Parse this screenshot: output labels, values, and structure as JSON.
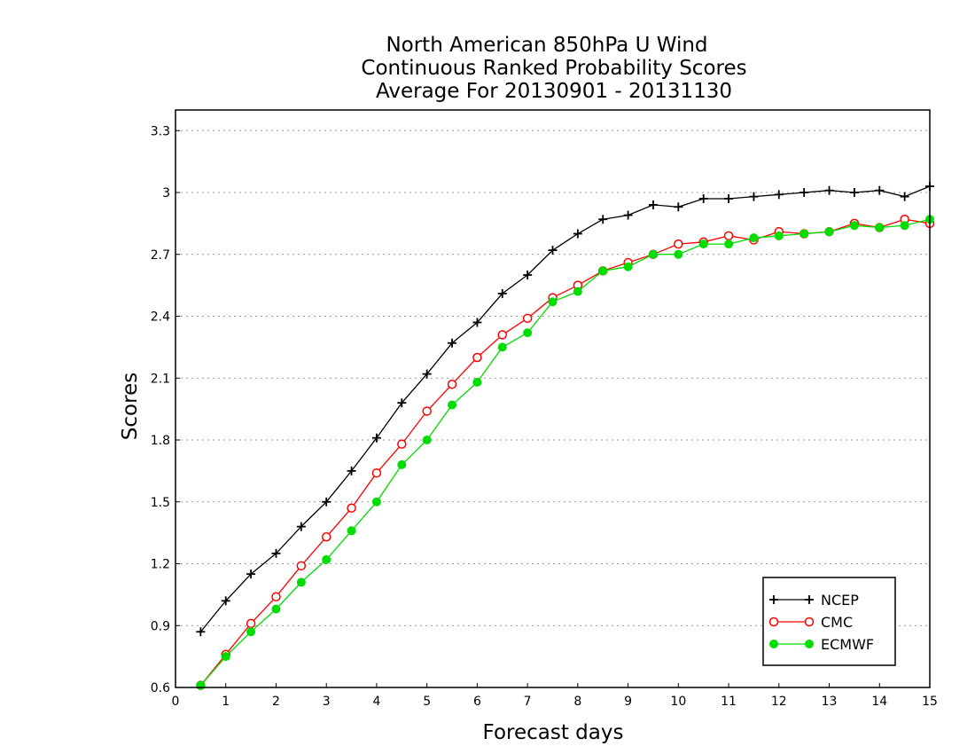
{
  "chart_data": {
    "type": "line",
    "title": [
      "North American 850hPa U Wind",
      "Continuous Ranked Probability Scores",
      "Average For 20130901 - 20131130"
    ],
    "xlabel": "Forecast days",
    "ylabel": "Scores",
    "xlim": [
      0,
      15
    ],
    "ylim": [
      0.6,
      3.4
    ],
    "xticks": [
      0,
      1,
      2,
      3,
      4,
      5,
      6,
      7,
      8,
      9,
      10,
      11,
      12,
      13,
      14,
      15
    ],
    "yticks": [
      0.6,
      0.9,
      1.2,
      1.5,
      1.8,
      2.1,
      2.4,
      2.7,
      3,
      3.3
    ],
    "ytick_labels": [
      "0.6",
      "0.9",
      "1.2",
      "1.5",
      "1.8",
      "2.1",
      "2.4",
      "2.7",
      "3",
      "3.3"
    ],
    "grid": "horizontal dotted",
    "legend_position": "bottom-right",
    "x": [
      0.5,
      1,
      1.5,
      2,
      2.5,
      3,
      3.5,
      4,
      4.5,
      5,
      5.5,
      6,
      6.5,
      7,
      7.5,
      8,
      8.5,
      9,
      9.5,
      10,
      10.5,
      11,
      11.5,
      12,
      12.5,
      13,
      13.5,
      14,
      14.5,
      15
    ],
    "series": [
      {
        "name": "NCEP",
        "color": "#000000",
        "marker": "plus",
        "values": [
          0.87,
          1.02,
          1.15,
          1.25,
          1.38,
          1.5,
          1.65,
          1.81,
          1.98,
          2.12,
          2.27,
          2.37,
          2.51,
          2.6,
          2.72,
          2.8,
          2.87,
          2.89,
          2.94,
          2.93,
          2.97,
          2.97,
          2.98,
          2.99,
          3.0,
          3.01,
          3.0,
          3.01,
          2.98,
          3.03
        ]
      },
      {
        "name": "CMC",
        "color": "#ff0000",
        "marker": "open-circle",
        "values": [
          0.61,
          0.76,
          0.91,
          1.04,
          1.19,
          1.33,
          1.47,
          1.64,
          1.78,
          1.94,
          2.07,
          2.2,
          2.31,
          2.39,
          2.49,
          2.55,
          2.62,
          2.66,
          2.7,
          2.75,
          2.76,
          2.79,
          2.77,
          2.81,
          2.8,
          2.81,
          2.85,
          2.83,
          2.87,
          2.85
        ]
      },
      {
        "name": "ECMWF",
        "color": "#00dd00",
        "marker": "filled-circle",
        "values": [
          0.61,
          0.75,
          0.87,
          0.98,
          1.11,
          1.22,
          1.36,
          1.5,
          1.68,
          1.8,
          1.97,
          2.08,
          2.25,
          2.32,
          2.47,
          2.52,
          2.62,
          2.64,
          2.7,
          2.7,
          2.75,
          2.75,
          2.78,
          2.79,
          2.8,
          2.81,
          2.84,
          2.83,
          2.84,
          2.87
        ]
      }
    ]
  }
}
